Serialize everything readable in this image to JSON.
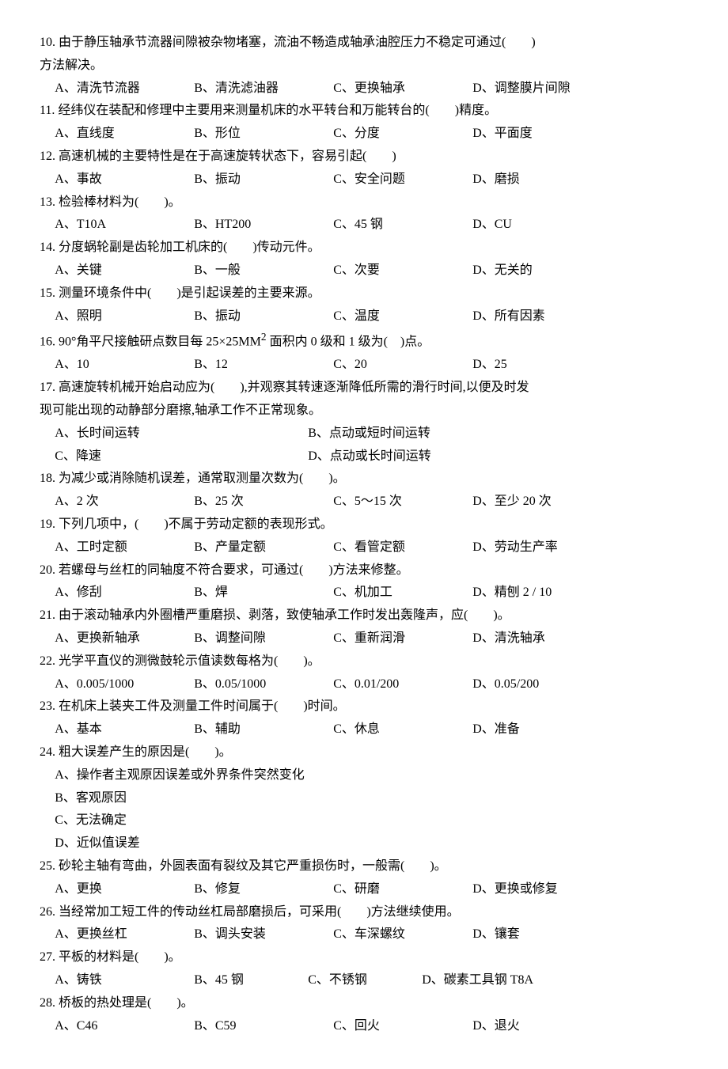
{
  "questions": [
    {
      "num": "10.",
      "text_a": "由于静压轴承节流器间隙被杂物堵塞，流油不畅造成轴承油腔压力不稳定可通过(",
      "text_b": ")",
      "cont": "方法解决。",
      "opts": [
        {
          "k": "A、",
          "v": "清洗节流器",
          "w": "w1"
        },
        {
          "k": "B、",
          "v": "清洗滤油器",
          "w": "w1"
        },
        {
          "k": "C、",
          "v": "更换轴承",
          "w": "w1"
        },
        {
          "k": "D、",
          "v": "调整膜片间隙",
          "w": ""
        }
      ]
    },
    {
      "num": "11.",
      "text_a": "经纬仪在装配和修理中主要用来测量机床的水平转台和万能转台的(",
      "text_b": ")精度。",
      "opts": [
        {
          "k": "A、",
          "v": "直线度",
          "w": "w1"
        },
        {
          "k": "B、",
          "v": "形位",
          "w": "w1"
        },
        {
          "k": "C、",
          "v": "分度",
          "w": "w1"
        },
        {
          "k": "D、",
          "v": "平面度",
          "w": ""
        }
      ]
    },
    {
      "num": "12.",
      "text_a": "高速机械的主要特性是在于高速旋转状态下，容易引起(",
      "text_b": ")",
      "opts": [
        {
          "k": "A、",
          "v": "事故",
          "w": "w1"
        },
        {
          "k": "B、",
          "v": "振动",
          "w": "w1"
        },
        {
          "k": "C、",
          "v": "安全问题",
          "w": "w1"
        },
        {
          "k": "D、",
          "v": "磨损",
          "w": ""
        }
      ]
    },
    {
      "num": "13.",
      "text_a": "检验棒材料为(",
      "text_b": ")。",
      "opts": [
        {
          "k": "A、",
          "v": "T10A",
          "w": "w1"
        },
        {
          "k": "B、",
          "v": "HT200",
          "w": "w1"
        },
        {
          "k": "C、",
          "v": "45 钢",
          "w": "w1"
        },
        {
          "k": "D、",
          "v": "CU",
          "w": ""
        }
      ]
    },
    {
      "num": "14.",
      "text_a": "分度蜗轮副是齿轮加工机床的(",
      "text_b": ")传动元件。",
      "opts": [
        {
          "k": "A、",
          "v": "关键",
          "w": "w1"
        },
        {
          "k": "B、",
          "v": "一般",
          "w": "w1"
        },
        {
          "k": "C、",
          "v": "次要",
          "w": "w1"
        },
        {
          "k": "D、",
          "v": "无关的",
          "w": ""
        }
      ]
    },
    {
      "num": "15.",
      "text_a": "测量环境条件中(",
      "text_b": ")是引起误差的主要来源。",
      "opts": [
        {
          "k": "A、",
          "v": "照明",
          "w": "w1"
        },
        {
          "k": "B、",
          "v": "振动",
          "w": "w1"
        },
        {
          "k": "C、",
          "v": "温度",
          "w": "w1"
        },
        {
          "k": "D、",
          "v": "所有因素",
          "w": ""
        }
      ]
    },
    {
      "num": "16.",
      "raw": "90°角平尺接触研点数目每 25×25MM<sup>2</sup> 面积内 0 级和 1 级为(　)点。",
      "opts": [
        {
          "k": "A、",
          "v": "10",
          "w": "w1"
        },
        {
          "k": "B、",
          "v": "12",
          "w": "w1"
        },
        {
          "k": "C、",
          "v": "20",
          "w": "w1"
        },
        {
          "k": "D、",
          "v": "25",
          "w": ""
        }
      ]
    },
    {
      "num": "17.",
      "text_a": "高速旋转机械开始启动应为(",
      "text_b": "),并观察其转速逐渐降低所需的滑行时间,以便及时发",
      "cont": "现可能出现的动静部分磨擦,轴承工作不正常现象。",
      "opts2col": [
        [
          {
            "k": "A、",
            "v": "长时间运转"
          },
          {
            "k": "B、",
            "v": "点动或短时间运转"
          }
        ],
        [
          {
            "k": "C、",
            "v": "降速"
          },
          {
            "k": "D、",
            "v": "点动或长时间运转"
          }
        ]
      ]
    },
    {
      "num": "18.",
      "text_a": "为减少或消除随机误差，通常取测量次数为(",
      "text_b": ")。",
      "opts": [
        {
          "k": "A、",
          "v": "2 次",
          "w": "w1"
        },
        {
          "k": "B、",
          "v": "25 次",
          "w": "w1"
        },
        {
          "k": "C、",
          "v": "5～15 次",
          "w": "w1"
        },
        {
          "k": "D、",
          "v": "至少 20 次",
          "w": ""
        }
      ]
    },
    {
      "num": "19.",
      "text_a": "下列几项中，(",
      "text_b": ")不属于劳动定额的表现形式。",
      "opts": [
        {
          "k": "A、",
          "v": "工时定额",
          "w": "w1"
        },
        {
          "k": "B、",
          "v": "产量定额",
          "w": "w1"
        },
        {
          "k": "C、",
          "v": "看管定额",
          "w": "w1"
        },
        {
          "k": "D、",
          "v": "劳动生产率",
          "w": ""
        }
      ]
    },
    {
      "num": "20.",
      "text_a": "若螺母与丝杠的同轴度不符合要求，可通过(",
      "text_b": ")方法来修整。",
      "opts": [
        {
          "k": "A、",
          "v": "修刮",
          "w": "w1"
        },
        {
          "k": "B、",
          "v": "焊",
          "w": "w1"
        },
        {
          "k": "C、",
          "v": "机加工",
          "w": "w1"
        },
        {
          "k": "D、",
          "v": "精刨 2 / 10",
          "w": ""
        }
      ]
    },
    {
      "num": "21.",
      "text_a": "由于滚动轴承内外圈槽严重磨损、剥落，致使轴承工作时发出轰隆声，应(",
      "text_b": ")。",
      "opts": [
        {
          "k": "A、",
          "v": "更换新轴承",
          "w": "w1"
        },
        {
          "k": "B、",
          "v": "调整间隙",
          "w": "w1"
        },
        {
          "k": "C、",
          "v": "重新润滑",
          "w": "w1"
        },
        {
          "k": "D、",
          "v": "清洗轴承",
          "w": ""
        }
      ]
    },
    {
      "num": "22.",
      "text_a": "光学平直仪的测微鼓轮示值读数每格为(",
      "text_b": ")。",
      "opts": [
        {
          "k": "A、",
          "v": "0.005/1000",
          "w": "w1"
        },
        {
          "k": "B、",
          "v": "0.05/1000",
          "w": "w1"
        },
        {
          "k": "C、",
          "v": "0.01/200",
          "w": "w1"
        },
        {
          "k": "D、",
          "v": "0.05/200",
          "w": ""
        }
      ]
    },
    {
      "num": "23.",
      "text_a": "在机床上装夹工件及测量工件时间属于(",
      "text_b": ")时间。",
      "opts": [
        {
          "k": "A、",
          "v": "基本",
          "w": "w1"
        },
        {
          "k": "B、",
          "v": "辅助",
          "w": "w1"
        },
        {
          "k": "C、",
          "v": "休息",
          "w": "w1"
        },
        {
          "k": "D、",
          "v": "准备",
          "w": ""
        }
      ]
    },
    {
      "num": "24.",
      "text_a": "粗大误差产生的原因是(",
      "text_b": ")。",
      "optsV": [
        {
          "k": "A、",
          "v": "操作者主观原因误差或外界条件突然变化"
        },
        {
          "k": "B、",
          "v": "客观原因"
        },
        {
          "k": "C、",
          "v": "无法确定"
        },
        {
          "k": "D、",
          "v": "近似值误差"
        }
      ]
    },
    {
      "num": "25.",
      "text_a": "砂轮主轴有弯曲，外圆表面有裂纹及其它严重损伤时，一般需(",
      "text_b": ")。",
      "opts": [
        {
          "k": "A、",
          "v": "更换",
          "w": "w1"
        },
        {
          "k": "B、",
          "v": "修复",
          "w": "w1"
        },
        {
          "k": "C、",
          "v": "研磨",
          "w": "w1"
        },
        {
          "k": "D、",
          "v": "更换或修复",
          "w": ""
        }
      ]
    },
    {
      "num": "26.",
      "text_a": "当经常加工短工件的传动丝杠局部磨损后，可采用(",
      "text_b": ")方法继续使用。",
      "opts": [
        {
          "k": "A、",
          "v": "更换丝杠",
          "w": "w1"
        },
        {
          "k": "B、",
          "v": "调头安装",
          "w": "w1"
        },
        {
          "k": "C、",
          "v": "车深螺纹",
          "w": "w1"
        },
        {
          "k": "D、",
          "v": "镶套",
          "w": ""
        }
      ]
    },
    {
      "num": "27.",
      "text_a": "平板的材料是(",
      "text_b": ")。",
      "opts": [
        {
          "k": "A、",
          "v": "铸铁",
          "w": "w1"
        },
        {
          "k": "B、",
          "v": "45 钢",
          "w": "w3"
        },
        {
          "k": "C、",
          "v": "不锈钢",
          "w": "w3"
        },
        {
          "k": "D、",
          "v": "碳素工具钢 T8A",
          "w": ""
        }
      ]
    },
    {
      "num": "28.",
      "text_a": "桥板的热处理是(",
      "text_b": ")。",
      "opts": [
        {
          "k": "A、",
          "v": "C46",
          "w": "w1"
        },
        {
          "k": "B、",
          "v": "C59",
          "w": "w1"
        },
        {
          "k": "C、",
          "v": "回火",
          "w": "w1"
        },
        {
          "k": "D、",
          "v": "退火",
          "w": ""
        }
      ]
    }
  ]
}
